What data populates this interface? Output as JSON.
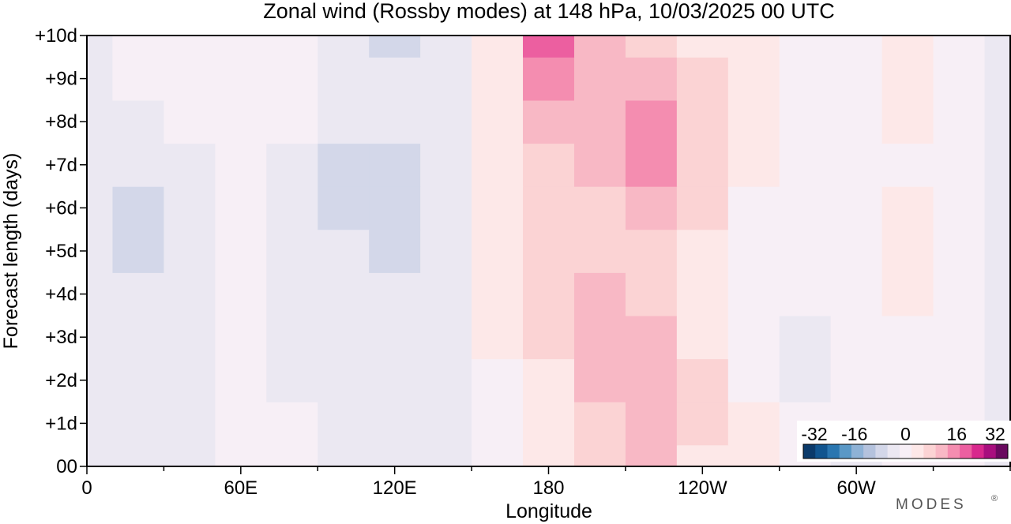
{
  "chart_data": {
    "type": "heatmap",
    "title": "Zonal wind (Rossby modes) at 148 hPa,  10/03/2025  00 UTC",
    "xlabel": "Longitude",
    "ylabel": "Forecast length (days)",
    "x_ticks": [
      "0",
      "60E",
      "120E",
      "180",
      "120W",
      "60W"
    ],
    "x_tick_values": [
      0,
      60,
      120,
      180,
      240,
      300
    ],
    "xlim": [
      0,
      360
    ],
    "y_ticks": [
      "00",
      "+1d",
      "+2d",
      "+3d",
      "+4d",
      "+5d",
      "+6d",
      "+7d",
      "+8d",
      "+9d",
      "+10d"
    ],
    "y_tick_values": [
      0,
      1,
      2,
      3,
      4,
      5,
      6,
      7,
      8,
      9,
      10
    ],
    "ylim": [
      0,
      10
    ],
    "colorbar": {
      "labels": [
        "-32",
        "-16",
        "0",
        "16",
        "32"
      ],
      "label_values": [
        -32,
        -16,
        0,
        16,
        32
      ],
      "range": [
        -32,
        32
      ],
      "colors": [
        "#0b3a6a",
        "#11558f",
        "#2a76b0",
        "#5a98c6",
        "#8eb2d6",
        "#b4c2dd",
        "#d3d7e9",
        "#ebe8f2",
        "#f7eff6",
        "#fde8e8",
        "#fbd3d4",
        "#f8b8c5",
        "#f48db0",
        "#ec5fa0",
        "#d8288d",
        "#a80f7e",
        "#6a0a5f"
      ]
    },
    "contour_cells": {
      "lon_step": 20,
      "day_step": 1,
      "lons": [
        0,
        20,
        40,
        60,
        80,
        100,
        120,
        140,
        160,
        180,
        200,
        220,
        240,
        260,
        280,
        300,
        320,
        340,
        360
      ],
      "days": [
        0,
        1,
        2,
        3,
        4,
        5,
        6,
        7,
        8,
        9,
        10
      ],
      "values": [
        [
          -3,
          -4,
          -3,
          -1,
          1,
          -3,
          -2,
          -5,
          -1,
          3,
          8,
          12,
          5,
          2,
          -1,
          -2,
          1,
          0,
          -3
        ],
        [
          -3,
          -3,
          -2,
          -1,
          0,
          -4,
          -3,
          -4,
          0,
          4,
          9,
          12,
          6,
          2,
          -1,
          -1,
          0,
          0,
          -3
        ],
        [
          -3,
          -3,
          -2,
          0,
          -3,
          -4,
          -4,
          -3,
          0,
          5,
          12,
          13,
          7,
          1,
          -2,
          -1,
          0,
          -1,
          -3
        ],
        [
          -4,
          -3,
          -2,
          0,
          -4,
          -4,
          -4,
          -2,
          2,
          6,
          13,
          10,
          5,
          1,
          -2,
          -1,
          1,
          -1,
          -3
        ],
        [
          -4,
          -4,
          -3,
          0,
          -3,
          -4,
          -5,
          -2,
          3,
          7,
          13,
          9,
          4,
          1,
          -1,
          -1,
          2,
          0,
          -2
        ],
        [
          -4,
          -6,
          -4,
          -1,
          -3,
          -5,
          -6,
          -3,
          2,
          8,
          9,
          9,
          4,
          1,
          -1,
          -1,
          3,
          1,
          -2
        ],
        [
          -4,
          -7,
          -3,
          -1,
          -2,
          -6,
          -7,
          -3,
          2,
          8,
          9,
          12,
          6,
          1,
          -1,
          -1,
          2,
          1,
          -2
        ],
        [
          -4,
          -5,
          -2,
          0,
          -2,
          -6,
          -6,
          -2,
          3,
          9,
          13,
          15,
          7,
          2,
          0,
          0,
          1,
          0,
          -2
        ],
        [
          -3,
          -3,
          -1,
          1,
          -1,
          -4,
          -5,
          -2,
          3,
          13,
          12,
          14,
          7,
          2,
          0,
          1,
          2,
          0,
          -2
        ],
        [
          -2,
          -1,
          1,
          1,
          -1,
          -3,
          -5,
          -4,
          2,
          16,
          11,
          10,
          6,
          2,
          0,
          1,
          2,
          1,
          -2
        ],
        [
          -2,
          1,
          1,
          1,
          -1,
          -3,
          -6,
          -5,
          2,
          17,
          10,
          7,
          5,
          2,
          0,
          1,
          2,
          1,
          -2
        ]
      ]
    }
  },
  "watermark": "MODES",
  "watermark_mark": "®"
}
